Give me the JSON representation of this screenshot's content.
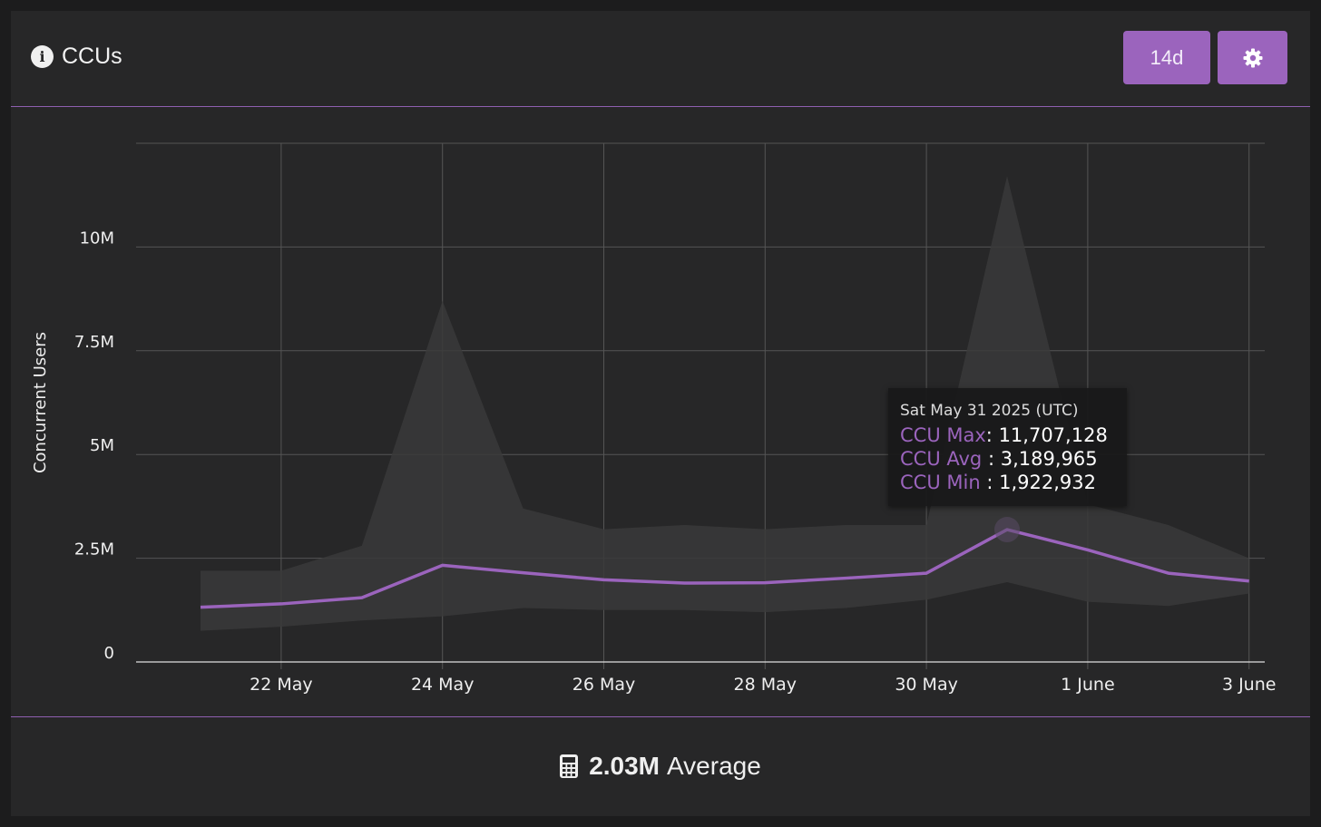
{
  "header": {
    "title": "CCUs",
    "range_button": "14d",
    "info_icon": "info-circle-icon",
    "settings_icon": "gear-icon"
  },
  "colors": {
    "accent": "#9b64bd",
    "background": "#272728",
    "band": "#39393a",
    "grid": "#555555",
    "text": "#efefef"
  },
  "tooltip": {
    "date": "Sat May 31 2025 (UTC)",
    "max_label": "CCU Max",
    "max_value": "11,707,128",
    "avg_label": "CCU Avg",
    "avg_value": "3,189,965",
    "min_label": "CCU Min",
    "min_value": "1,922,932"
  },
  "footer": {
    "icon": "calculator-icon",
    "value": "2.03M",
    "label": "Average"
  },
  "chart_data": {
    "type": "line",
    "ylabel": "Concurrent Users",
    "ylim": [
      0,
      12500000
    ],
    "y_ticks": [
      0,
      2500000,
      5000000,
      7500000,
      10000000
    ],
    "y_tick_labels": [
      "0",
      "2.5M",
      "5M",
      "7.5M",
      "10M"
    ],
    "x_tick_labels": [
      "22 May",
      "24 May",
      "26 May",
      "28 May",
      "30 May",
      "1 June",
      "3 June"
    ],
    "grid": true,
    "x": [
      "21 May",
      "22 May",
      "23 May",
      "24 May",
      "25 May",
      "26 May",
      "27 May",
      "28 May",
      "29 May",
      "30 May",
      "31 May",
      "1 June",
      "2 June",
      "3 June"
    ],
    "series": [
      {
        "name": "CCU Avg",
        "values": [
          1320000,
          1400000,
          1550000,
          2330000,
          2150000,
          1980000,
          1900000,
          1910000,
          2020000,
          2140000,
          3189965,
          2700000,
          2140000,
          1950000
        ]
      },
      {
        "name": "CCU Max",
        "values": [
          2200000,
          2200000,
          2800000,
          8700000,
          3700000,
          3200000,
          3300000,
          3200000,
          3300000,
          3300000,
          11707128,
          3800000,
          3300000,
          2500000
        ]
      },
      {
        "name": "CCU Min",
        "values": [
          750000,
          850000,
          1000000,
          1100000,
          1300000,
          1250000,
          1250000,
          1200000,
          1300000,
          1500000,
          1922932,
          1450000,
          1350000,
          1650000
        ]
      }
    ]
  }
}
